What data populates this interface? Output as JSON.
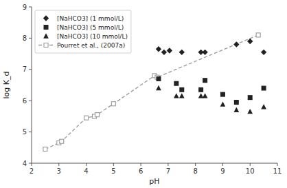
{
  "chart_data": {
    "type": "scatter",
    "xlabel": "pH",
    "ylabel": "log K_d",
    "series": [
      {
        "name": "[NaHCO3] (1 mmol/L)",
        "type": "scatter",
        "marker": "diamond",
        "color": "#222222",
        "x": [
          6.65,
          6.85,
          7.05,
          7.5,
          8.2,
          8.35,
          9.5,
          10.0,
          10.5
        ],
        "values": [
          7.65,
          7.55,
          7.6,
          7.55,
          7.55,
          7.55,
          7.8,
          7.9,
          7.55
        ]
      },
      {
        "name": "[NaHCO3] (5 mmol/L)",
        "type": "scatter",
        "marker": "square",
        "color": "#222222",
        "x": [
          6.65,
          7.3,
          7.5,
          8.2,
          8.35,
          9.0,
          9.5,
          10.0,
          10.5
        ],
        "values": [
          6.7,
          6.55,
          6.35,
          6.35,
          6.65,
          6.2,
          5.95,
          6.1,
          6.4
        ]
      },
      {
        "name": "[NaHCO3] (10 mmol/L)",
        "type": "scatter",
        "marker": "triangle",
        "color": "#222222",
        "x": [
          6.65,
          7.3,
          7.5,
          8.2,
          8.35,
          9.0,
          9.5,
          10.0,
          10.5
        ],
        "values": [
          6.4,
          6.15,
          6.15,
          6.15,
          6.15,
          5.88,
          5.7,
          5.65,
          5.8
        ]
      },
      {
        "name": "Pourret et al., (2007a)",
        "type": "line",
        "marker": "open-square",
        "line_style": "dashed",
        "color": "#999999",
        "x": [
          2.5,
          3.0,
          3.1,
          4.0,
          4.3,
          4.4,
          5.0,
          6.5,
          6.6,
          10.3
        ],
        "values": [
          4.45,
          4.65,
          4.7,
          5.45,
          5.5,
          5.55,
          5.9,
          6.8,
          6.75,
          8.1
        ]
      }
    ],
    "xlim": [
      2,
      11
    ],
    "ylim": [
      4,
      9
    ],
    "xticks": [
      2,
      3,
      4,
      5,
      6,
      7,
      8,
      9,
      10,
      11
    ],
    "yticks": [
      4,
      5,
      6,
      7,
      8,
      9
    ],
    "grid": false,
    "legend": "upper left"
  }
}
